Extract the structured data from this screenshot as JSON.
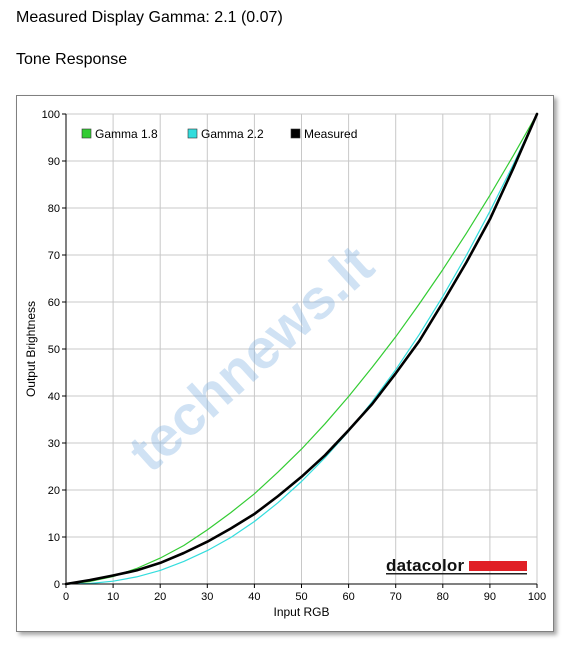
{
  "header": {
    "title": "Measured Display Gamma: 2.1 (0.07)",
    "section": "Tone Response"
  },
  "watermark": "technews.lt",
  "brand": {
    "name": "datacolor",
    "accent_color": "#e01f26"
  },
  "chart_data": {
    "type": "line",
    "xlabel": "Input RGB",
    "ylabel": "Output Brightness",
    "xlim": [
      0,
      100
    ],
    "ylim": [
      0,
      100
    ],
    "xticks": [
      "0",
      "10",
      "20",
      "30",
      "40",
      "50",
      "60",
      "70",
      "80",
      "90",
      "100"
    ],
    "yticks": [
      "0",
      "10",
      "20",
      "30",
      "40",
      "50",
      "60",
      "70",
      "80",
      "90",
      "100"
    ],
    "grid": true,
    "legend": "top-left",
    "x": [
      0,
      5,
      10,
      15,
      20,
      25,
      30,
      35,
      40,
      45,
      50,
      55,
      60,
      65,
      70,
      75,
      80,
      85,
      90,
      95,
      100
    ],
    "series": [
      {
        "name": "Gamma 1.8",
        "color": "#33cc33",
        "values": [
          0,
          0.5,
          1.6,
          3.3,
          5.5,
          8.2,
          11.5,
          15.2,
          19.2,
          23.8,
          28.7,
          34.1,
          39.9,
          46.1,
          52.6,
          59.6,
          66.9,
          74.6,
          82.7,
          91.2,
          100
        ]
      },
      {
        "name": "Gamma 2.2",
        "color": "#33dddd",
        "values": [
          0,
          0.1,
          0.6,
          1.5,
          2.9,
          4.8,
          7.1,
          9.9,
          13.3,
          17.3,
          21.8,
          26.9,
          32.5,
          38.8,
          45.6,
          53.1,
          61.2,
          69.9,
          79.3,
          89.3,
          100
        ]
      },
      {
        "name": "Measured",
        "color": "#000000",
        "values": [
          0,
          0.8,
          1.8,
          2.9,
          4.5,
          6.6,
          9.0,
          11.8,
          14.9,
          18.7,
          22.8,
          27.4,
          32.7,
          38.3,
          44.8,
          51.7,
          59.9,
          68.4,
          77.6,
          88.5,
          100
        ]
      }
    ]
  }
}
